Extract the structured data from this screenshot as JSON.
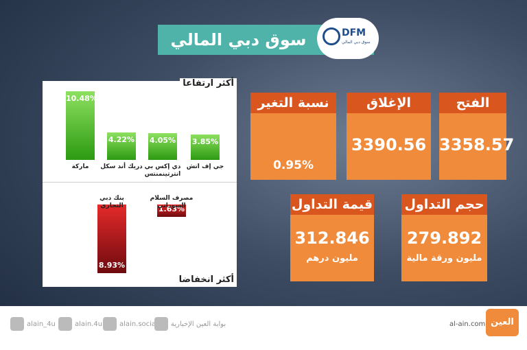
{
  "header": {
    "title": "سوق دبي المالي",
    "logo": "DFM",
    "logo_sub": "سوق دبي المالي"
  },
  "stats": [
    {
      "label": "الفتح",
      "value": "3358.57"
    },
    {
      "label": "الإغلاق",
      "value": "3390.56"
    },
    {
      "label": "نسبة التغير",
      "value": "0.95%"
    },
    {
      "label": "حجم التداول",
      "value": "279.892",
      "unit": "مليون ورقة مالية"
    },
    {
      "label": "قيمة التداول",
      "value": "312.846",
      "unit": "مليون درهم"
    }
  ],
  "chart_data": [
    {
      "type": "bar",
      "title": "أكثر ارتفاعا",
      "direction": "up",
      "color": "#3aa41c",
      "categories": [
        "ماركة",
        "دريك أند سكل",
        "دي إكس بي انترتينمنتس",
        "جي إف اتش"
      ],
      "values": [
        10.48,
        4.22,
        4.05,
        3.85
      ],
      "value_labels": [
        "10.48%",
        "4.22%",
        "4.05%",
        "3.85%"
      ]
    },
    {
      "type": "bar",
      "title": "أكثر انخفاضا",
      "direction": "down",
      "color": "#b3121a",
      "categories": [
        "بنك دبي التجاري",
        "مصرف السلام السوداني"
      ],
      "values": [
        8.93,
        1.63
      ],
      "value_labels": [
        "8.93%",
        "1.63%"
      ]
    }
  ],
  "footer": {
    "social": [
      "alain_4u",
      "alain.4u",
      "alain.social",
      "بوابة العين الإخبارية"
    ],
    "site": "al-ain.com",
    "brand": "العين"
  }
}
